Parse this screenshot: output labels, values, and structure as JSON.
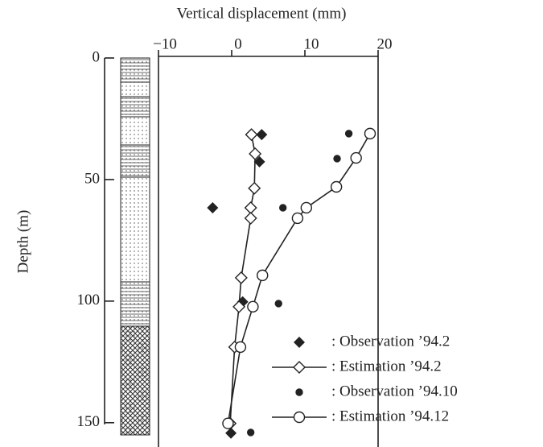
{
  "chart_data": {
    "type": "scatter",
    "title": "Vertical displacement (mm)",
    "y_label": "Depth (m)",
    "xlim": [
      -10,
      20
    ],
    "xticks": [
      {
        "value": -10,
        "label": "−10"
      },
      0,
      10,
      20
    ],
    "ylim": [
      0,
      160
    ],
    "yticks": [
      0,
      50,
      100,
      150
    ],
    "y_inverted": true,
    "x_axis_position": "top",
    "series": [
      {
        "name": ": Observation ’94.2",
        "marker": "diamond-filled",
        "line": false,
        "color": "#222",
        "x": [
          4.1,
          3.8,
          -2.6,
          1.5,
          -0.1
        ],
        "y": [
          31.5,
          42.7,
          61.6,
          100.3,
          154.3
        ]
      },
      {
        "name": ": Estimation ’94.2",
        "marker": "diamond-open",
        "line": true,
        "color": "#222",
        "x": [
          2.7,
          3.2,
          3.1,
          2.6,
          2.6,
          1.3,
          1.0,
          0.4,
          -0.2
        ],
        "y": [
          31.5,
          39.4,
          53.6,
          61.6,
          65.9,
          90.4,
          102.3,
          118.9,
          150.3
        ]
      },
      {
        "name": ": Observation ’94.10",
        "marker": "circle-filled",
        "line": false,
        "color": "#222",
        "x": [
          16.0,
          14.4,
          7.0,
          6.4,
          2.6
        ],
        "y": [
          31.1,
          41.4,
          61.6,
          101.0,
          154.0
        ]
      },
      {
        "name": ": Estimation ’94.12",
        "marker": "circle-open",
        "line": true,
        "color": "#222",
        "x": [
          18.9,
          17.0,
          14.3,
          10.2,
          9.0,
          4.2,
          2.9,
          1.2,
          -0.5
        ],
        "y": [
          31.1,
          41.1,
          53.0,
          61.6,
          65.9,
          89.4,
          102.3,
          118.9,
          150.3
        ]
      }
    ]
  }
}
